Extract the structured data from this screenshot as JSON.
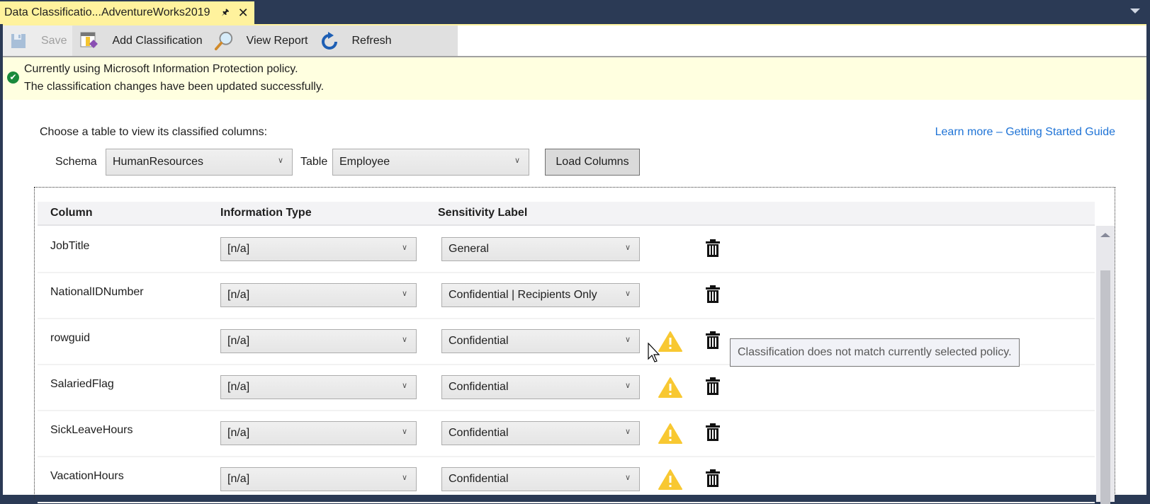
{
  "tab": {
    "title": "Data Classificatio...AdventureWorks2019",
    "pin_icon": "pin-icon",
    "close_icon": "close-icon"
  },
  "toolbar": {
    "save": "Save",
    "add_classification": "Add Classification",
    "view_report": "View Report",
    "refresh": "Refresh"
  },
  "infobar": {
    "line1": "Currently using Microsoft Information Protection policy.",
    "line2": "The classification changes have been updated successfully.",
    "status_color": "#1a8a3c"
  },
  "selector": {
    "prompt": "Choose a table to view its classified columns:",
    "schema_label": "Schema",
    "schema_value": "HumanResources",
    "table_label": "Table",
    "table_value": "Employee",
    "load_button": "Load Columns",
    "learn_more": "Learn more – Getting Started Guide"
  },
  "grid": {
    "headers": {
      "column": "Column",
      "information_type": "Information Type",
      "sensitivity_label": "Sensitivity Label"
    },
    "rows": [
      {
        "column": "JobTitle",
        "information_type": "[n/a]",
        "sensitivity_label": "General",
        "warning": false
      },
      {
        "column": "NationalIDNumber",
        "information_type": "[n/a]",
        "sensitivity_label": "Confidential | Recipients Only",
        "warning": false
      },
      {
        "column": "rowguid",
        "information_type": "[n/a]",
        "sensitivity_label": "Confidential",
        "warning": true
      },
      {
        "column": "SalariedFlag",
        "information_type": "[n/a]",
        "sensitivity_label": "Confidential",
        "warning": true
      },
      {
        "column": "SickLeaveHours",
        "information_type": "[n/a]",
        "sensitivity_label": "Confidential",
        "warning": true
      },
      {
        "column": "VacationHours",
        "information_type": "[n/a]",
        "sensitivity_label": "Confidential",
        "warning": true
      }
    ]
  },
  "tooltip": "Classification does not match currently selected policy.",
  "colors": {
    "accent_tab": "#fff29d",
    "frame": "#2b3a55",
    "link": "#1e73d6",
    "warning": "#f8c832"
  }
}
